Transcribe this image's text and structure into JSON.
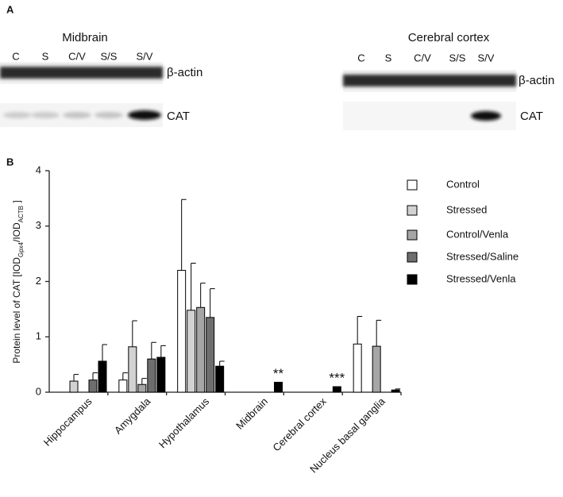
{
  "panel_a": {
    "label": "A",
    "blots": [
      {
        "title": "Midbrain",
        "lanes": [
          "C",
          "S",
          "C/V",
          "S/S",
          "S/V"
        ],
        "bands": [
          "β-actin",
          "CAT"
        ]
      },
      {
        "title": "Cerebral cortex",
        "lanes": [
          "C",
          "S",
          "C/V",
          "S/S",
          "S/V"
        ],
        "bands": [
          "β-actin",
          "CAT"
        ]
      }
    ]
  },
  "chart_data": {
    "type": "bar",
    "panel_label": "B",
    "y_label_parts": [
      "Protein level of CAT [IOD",
      "Gpx4",
      "/IOD",
      "ACTB",
      " ]"
    ],
    "categories": [
      "Hippocampus",
      "Amygdala",
      "Hypothalamus",
      "Midbrain",
      "Cerebral cortex",
      "Nucleus basal ganglia"
    ],
    "series": [
      {
        "name": "Control",
        "color": "#ffffff",
        "values": [
          0,
          0.22,
          2.2,
          0,
          0,
          0.87
        ],
        "errors": [
          null,
          0.13,
          1.28,
          null,
          null,
          0.5
        ]
      },
      {
        "name": "Stressed",
        "color": "#d2d2d2",
        "values": [
          0.2,
          0.82,
          1.48,
          0,
          0,
          0
        ],
        "errors": [
          0.12,
          0.47,
          0.85,
          null,
          null,
          null
        ]
      },
      {
        "name": "Control/Venla",
        "color": "#a6a6a6",
        "values": [
          0,
          0.14,
          1.53,
          0,
          0,
          0.83
        ],
        "errors": [
          null,
          0.11,
          0.44,
          null,
          null,
          0.47
        ]
      },
      {
        "name": "Stressed/Saline",
        "color": "#6e6e6e",
        "values": [
          0.22,
          0.6,
          1.35,
          0,
          0,
          0
        ],
        "errors": [
          0.13,
          0.3,
          0.52,
          null,
          null,
          null
        ]
      },
      {
        "name": "Stressed/Venla",
        "color": "#000000",
        "values": [
          0.56,
          0.63,
          0.47,
          0.18,
          0.1,
          0.04
        ],
        "errors": [
          0.3,
          0.21,
          0.09,
          null,
          null,
          0.02
        ],
        "annotations": [
          null,
          null,
          null,
          "**",
          "***",
          null
        ]
      }
    ],
    "ylim": [
      0,
      4
    ],
    "yticks": [
      0,
      1,
      2,
      3,
      4
    ],
    "grid": false,
    "legend": "right"
  }
}
